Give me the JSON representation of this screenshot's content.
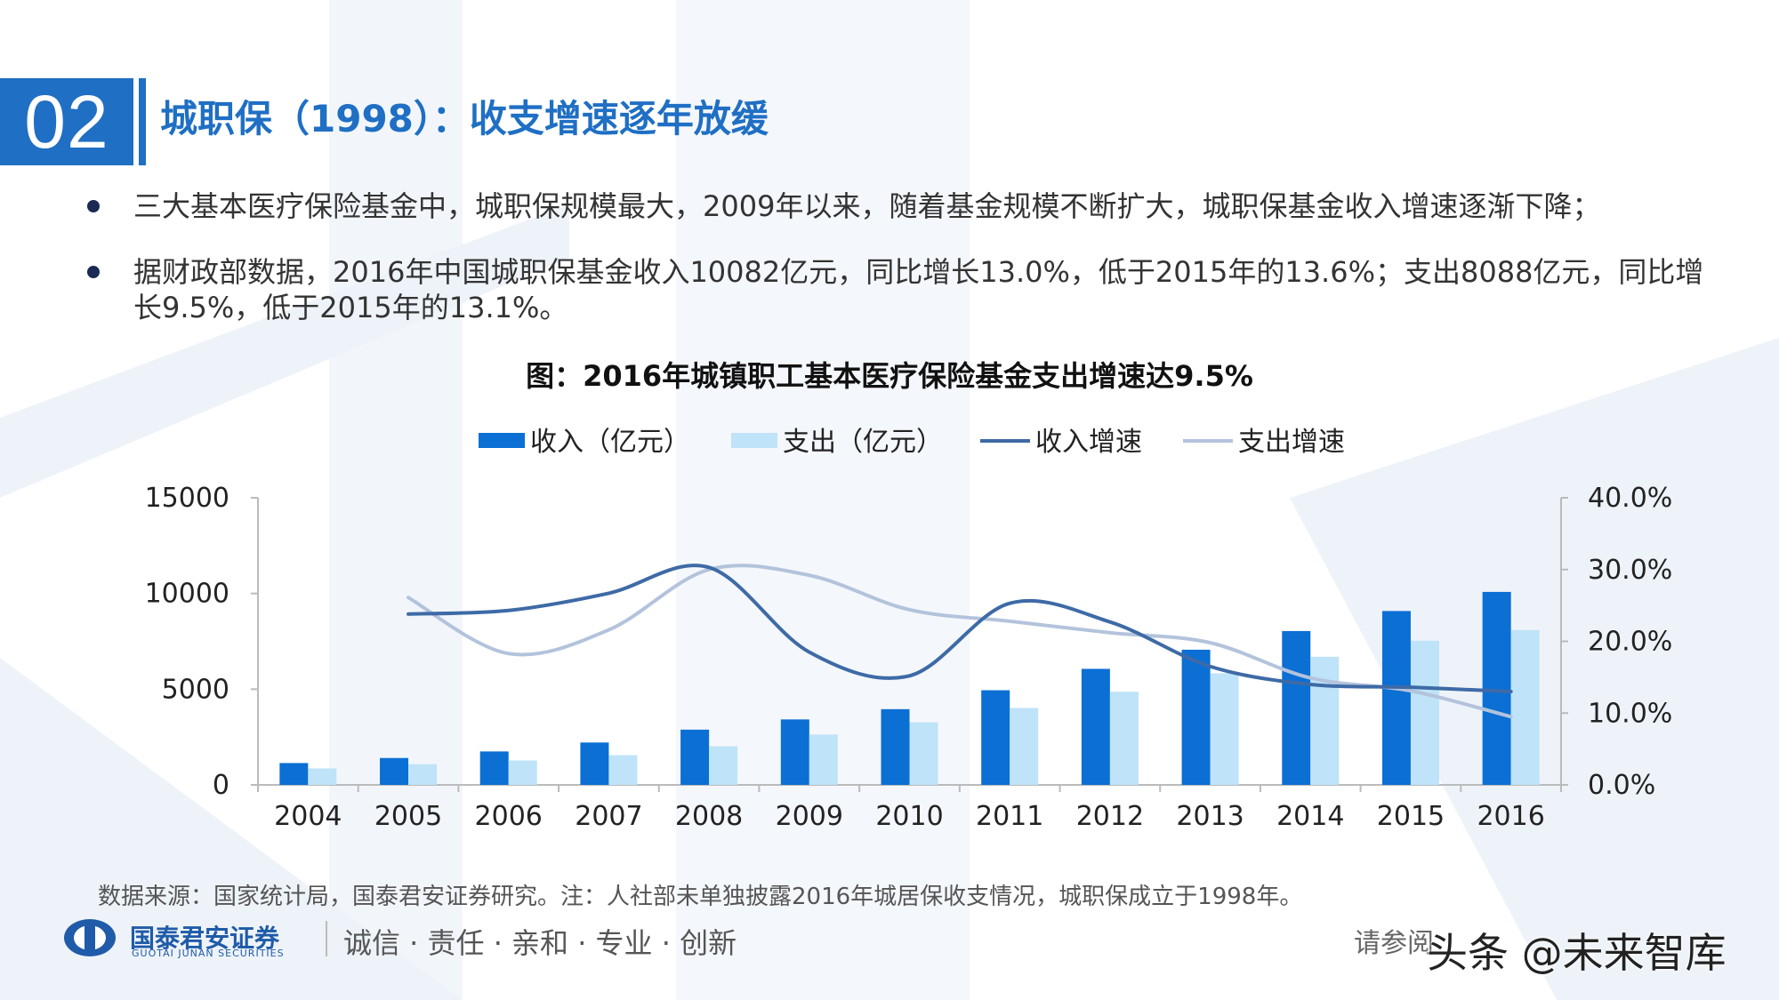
{
  "header": {
    "section_number": "02",
    "title": "城职保（1998）：收支增速逐年放缓"
  },
  "bullets": [
    "三大基本医疗保险基金中，城职保规模最大，2009年以来，随着基金规模不断扩大，城职保基金收入增速逐渐下降；",
    "据财政部数据，2016年中国城职保基金收入10082亿元，同比增长13.0%，低于2015年的13.6%；支出8088亿元，同比增长9.5%，低于2015年的13.1%。"
  ],
  "chart_data": {
    "type": "bar",
    "title": "图：2016年城镇职工基本医疗保险基金支出增速达9.5%",
    "categories": [
      "2004",
      "2005",
      "2006",
      "2007",
      "2008",
      "2009",
      "2010",
      "2011",
      "2012",
      "2013",
      "2014",
      "2015",
      "2016"
    ],
    "series": [
      {
        "name": "收入（亿元）",
        "type": "bar",
        "axis": "left",
        "color": "#0b6fd4",
        "values": [
          1141,
          1405,
          1747,
          2214,
          2886,
          3420,
          3955,
          4945,
          6062,
          7062,
          8038,
          9084,
          10082
        ]
      },
      {
        "name": "支出（亿元）",
        "type": "bar",
        "axis": "left",
        "color": "#bfe3f8",
        "values": [
          862,
          1079,
          1277,
          1552,
          2020,
          2630,
          3272,
          4018,
          4868,
          5830,
          6696,
          7531,
          8088
        ]
      },
      {
        "name": "收入增速",
        "type": "line",
        "axis": "right",
        "color": "#3e6aa6",
        "values": [
          null,
          23.8,
          24.3,
          26.7,
          30.3,
          18.5,
          15.2,
          25.3,
          22.7,
          16.5,
          14.0,
          13.6,
          13.0
        ]
      },
      {
        "name": "支出增速",
        "type": "line",
        "axis": "right",
        "color": "#b3c3dc",
        "values": [
          null,
          26.1,
          18.3,
          21.6,
          30.0,
          29.2,
          24.4,
          22.8,
          21.2,
          19.8,
          14.9,
          13.1,
          9.5
        ]
      }
    ],
    "y_left": {
      "min": 0,
      "max": 15000,
      "ticks": [
        "0",
        "5000",
        "10000",
        "15000"
      ]
    },
    "y_right": {
      "min": 0,
      "max": 40,
      "ticks": [
        "0.0%",
        "10.0%",
        "20.0%",
        "30.0%",
        "40.0%"
      ]
    },
    "legend_position": "top-center",
    "grid": false
  },
  "source": "数据来源：国家统计局，国泰君安证券研究。注：人社部未单独披露2016年城居保收支情况，城职保成立于1998年。",
  "footer": {
    "brand": "国泰君安证券",
    "brand_en": "GUOTAI JUNAN SECURITIES",
    "slogan": "诚信 · 责任 · 亲和 · 专业 · 创新",
    "right_text": "请参阅",
    "watermark": "头条 @未来智库"
  },
  "colors": {
    "accent": "#1f6fc4",
    "bar_income": "#0b6fd4",
    "bar_expense": "#bfe3f8",
    "line_income": "#3e6aa6",
    "line_expense": "#b3c3dc"
  }
}
